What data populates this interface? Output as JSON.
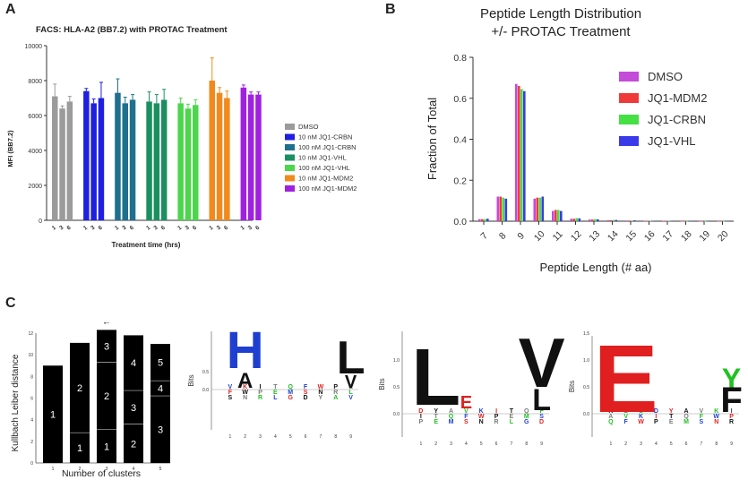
{
  "panels": {
    "a": "A",
    "b": "B",
    "c": "C"
  },
  "chart_data": [
    {
      "id": "a",
      "type": "bar",
      "title": "FACS: HLA-A2 (BB7.2) with PROTAC Treatment",
      "xlabel": "Treatment time (hrs)",
      "ylabel": "MFI (BB7.2)",
      "ylim": [
        0,
        10000
      ],
      "yticks": [
        0,
        2000,
        4000,
        6000,
        8000,
        10000
      ],
      "group_tick_labels": [
        "1",
        "3",
        "6"
      ],
      "legend_position": "right",
      "series": [
        {
          "name": "DMSO",
          "color": "#9b9b9b",
          "values": [
            7100,
            6400,
            6800
          ],
          "errors": [
            700,
            150,
            300
          ]
        },
        {
          "name": "10 nM JQ1-CRBN",
          "color": "#1f1fe0",
          "values": [
            7400,
            6700,
            7000
          ],
          "errors": [
            150,
            250,
            900
          ]
        },
        {
          "name": "100 nM JQ1-CRBN",
          "color": "#1f6f8f",
          "values": [
            7300,
            6700,
            6900
          ],
          "errors": [
            800,
            350,
            300
          ]
        },
        {
          "name": "10 nM JQ1-VHL",
          "color": "#1b8f5f",
          "values": [
            6800,
            6700,
            6900
          ],
          "errors": [
            550,
            500,
            600
          ]
        },
        {
          "name": "100 nM JQ1-VHL",
          "color": "#4cd64c",
          "values": [
            6700,
            6400,
            6600
          ],
          "errors": [
            300,
            250,
            300
          ]
        },
        {
          "name": "10 nM JQ1-MDM2",
          "color": "#f08a1c",
          "values": [
            8000,
            7300,
            7000
          ],
          "errors": [
            1300,
            300,
            400
          ]
        },
        {
          "name": "100 nM JQ1-MDM2",
          "color": "#a020e0",
          "values": [
            7600,
            7200,
            7200
          ],
          "errors": [
            150,
            150,
            150
          ]
        }
      ]
    },
    {
      "id": "b",
      "type": "bar",
      "title": "Peptide Length Distribution",
      "subtitle": "+/- PROTAC Treatment",
      "xlabel": "Peptide Length (# aa)",
      "ylabel": "Fraction of Total",
      "ylim": [
        0,
        0.8
      ],
      "yticks": [
        "0.0",
        "0.2",
        "0.4",
        "0.6",
        "0.8"
      ],
      "categories": [
        "7",
        "8",
        "9",
        "10",
        "11",
        "12",
        "13",
        "14",
        "15",
        "16",
        "17",
        "18",
        "19",
        "20"
      ],
      "legend_position": "right",
      "series": [
        {
          "name": "DMSO",
          "color": "#c44ad8",
          "values": [
            0.01,
            0.12,
            0.67,
            0.11,
            0.05,
            0.012,
            0.008,
            0.005,
            0.003,
            0.002,
            0.002,
            0.001,
            0.001,
            0.001
          ]
        },
        {
          "name": "JQ1-MDM2",
          "color": "#f03a3a",
          "values": [
            0.01,
            0.12,
            0.66,
            0.115,
            0.055,
            0.012,
            0.008,
            0.005,
            0.003,
            0.002,
            0.002,
            0.001,
            0.001,
            0.001
          ]
        },
        {
          "name": "JQ1-CRBN",
          "color": "#44e044",
          "values": [
            0.01,
            0.115,
            0.645,
            0.115,
            0.055,
            0.015,
            0.01,
            0.006,
            0.003,
            0.002,
            0.002,
            0.001,
            0.001,
            0.001
          ]
        },
        {
          "name": "JQ1-VHL",
          "color": "#3a3ae8",
          "values": [
            0.012,
            0.11,
            0.635,
            0.12,
            0.05,
            0.014,
            0.009,
            0.006,
            0.004,
            0.002,
            0.002,
            0.001,
            0.001,
            0.001
          ]
        }
      ]
    },
    {
      "id": "c1",
      "type": "bar",
      "ylabel": "Kullbach Leiber distance",
      "xlabel": "Number of clusters",
      "ylim": [
        0,
        12
      ],
      "yticks": [
        "0",
        "2",
        "4",
        "6",
        "8",
        "10",
        "12"
      ],
      "categories": [
        "1",
        "2",
        "3",
        "4",
        "5"
      ],
      "totals": [
        9.0,
        11.1,
        12.3,
        11.8,
        11.0
      ],
      "segment_labels": [
        [
          "1"
        ],
        [
          "1",
          "2"
        ],
        [
          "1",
          "2",
          "3"
        ],
        [
          "2",
          "3",
          "4"
        ],
        [
          "3",
          "4",
          "5"
        ]
      ],
      "segment_bounds": [
        [
          9.0
        ],
        [
          2.8,
          11.1
        ],
        [
          3.1,
          9.3,
          12.3
        ],
        [
          3.6,
          6.7,
          11.8
        ],
        [
          6.2,
          7.6,
          11.0
        ]
      ],
      "marker": "←",
      "marker_category": "3"
    }
  ],
  "logos": [
    {
      "ylabel": "Bits",
      "yticks": [
        "0.5",
        "0.0"
      ],
      "xticks": [
        "1",
        "2",
        "3",
        "4",
        "5",
        "6",
        "7",
        "8",
        "9"
      ],
      "big_letters": [
        {
          "pos": 2,
          "char": "H",
          "color": "#1f3fd0"
        },
        {
          "pos": 2,
          "char": "A",
          "color": "#111111"
        },
        {
          "pos": 9,
          "char": "L",
          "color": "#111111"
        },
        {
          "pos": 9,
          "char": "V",
          "color": "#111111"
        }
      ]
    },
    {
      "ylabel": "Bits",
      "yticks": [
        "0.0",
        "0.5",
        "1.0"
      ],
      "xticks": [
        "1",
        "2",
        "3",
        "4",
        "5",
        "6",
        "7",
        "8",
        "9"
      ],
      "big_letters": [
        {
          "pos": 2,
          "char": "L",
          "color": "#111111"
        },
        {
          "pos": 9,
          "char": "V",
          "color": "#111111"
        },
        {
          "pos": 9,
          "char": "L",
          "color": "#111111"
        },
        {
          "pos": 4,
          "char": "E",
          "color": "#e02020"
        }
      ]
    },
    {
      "ylabel": "Bits",
      "yticks": [
        "0.0",
        "0.5",
        "1.0",
        "1.5"
      ],
      "xticks": [
        "1",
        "2",
        "3",
        "4",
        "5",
        "6",
        "7",
        "8",
        "9"
      ],
      "big_letters": [
        {
          "pos": 2,
          "char": "E",
          "color": "#e02020"
        },
        {
          "pos": 9,
          "char": "Y",
          "color": "#22c022"
        },
        {
          "pos": 9,
          "char": "F",
          "color": "#111111"
        }
      ]
    }
  ]
}
